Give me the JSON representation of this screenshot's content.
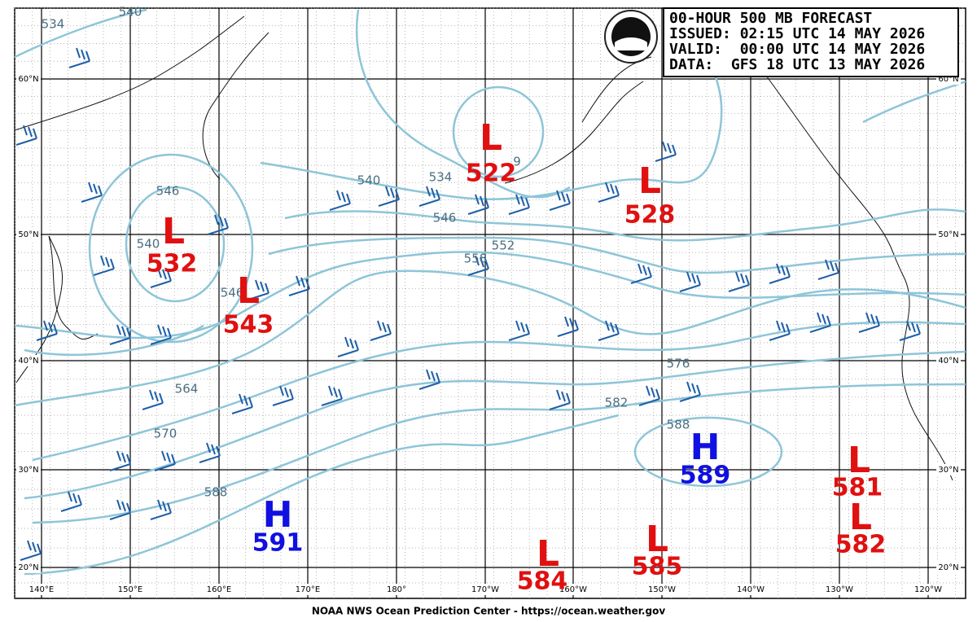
{
  "header": {
    "lines": [
      "00-HOUR 500 MB FORECAST",
      "ISSUED: 02:15 UTC 14 MAY 2026",
      "VALID:  00:00 UTC 14 MAY 2026",
      "DATA:  GFS 18 UTC 13 MAY 2026"
    ]
  },
  "centers": [
    {
      "type": "L",
      "value": 522
    },
    {
      "type": "L",
      "value": 528
    },
    {
      "type": "L",
      "value": 532
    },
    {
      "type": "L",
      "value": 543
    },
    {
      "type": "H",
      "value": 589
    },
    {
      "type": "L",
      "value": 581
    },
    {
      "type": "L",
      "value": 582
    },
    {
      "type": "H",
      "value": 591
    },
    {
      "type": "L",
      "value": 585
    },
    {
      "type": "L",
      "value": 584
    }
  ],
  "contour_labels": [
    "534",
    "540",
    "540",
    "534",
    "9",
    "546",
    "552",
    "558",
    "546",
    "540",
    "546",
    "564",
    "570",
    "576",
    "582",
    "588",
    "588"
  ],
  "lat_labels": [
    "60°N",
    "50°N",
    "40°N",
    "30°N",
    "20°N"
  ],
  "lon_labels": [
    "140°E",
    "150°E",
    "160°E",
    "170°E",
    "180°",
    "170°W",
    "160°W",
    "150°W",
    "140°W",
    "130°W",
    "120°W"
  ],
  "footer": "NOAA NWS Ocean Prediction Center - https://ocean.weather.gov"
}
